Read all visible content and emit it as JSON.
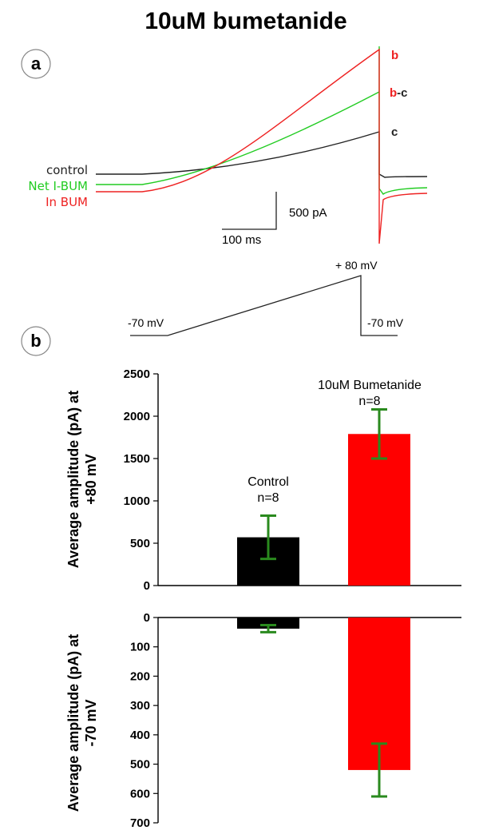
{
  "title": "10uM bumetanide",
  "panel_a": {
    "label": "a",
    "legend": [
      {
        "name": "control",
        "color": "#222222"
      },
      {
        "name": "Net I-BUM",
        "color": "#22cc22"
      },
      {
        "name": "In BUM",
        "color": "#ee2222"
      }
    ],
    "trace_end_labels": {
      "b": "b",
      "b_c_b": "b",
      "b_c_c": "-c",
      "c": "c"
    },
    "scale_bar": {
      "current": "500 pA",
      "time": "100 ms"
    },
    "protocol": {
      "peak": "+ 80 mV",
      "hold_left": "-70 mV",
      "hold_right": "-70 mV"
    }
  },
  "panel_b": {
    "label": "b",
    "bar_annotations": [
      {
        "name": "Control",
        "n": "n=8"
      },
      {
        "name": "10uM Bumetanide",
        "n": "n=8"
      }
    ]
  },
  "colors": {
    "control": "#000000",
    "bumetanide": "#ff0000",
    "error_bar": "#2a8a1e",
    "net": "#22cc22"
  },
  "chart_data": [
    {
      "type": "bar",
      "ylabel": "Average amplitude (pA) at +80 mV",
      "categories": [
        "Control",
        "10uM Bumetanide"
      ],
      "values": [
        570,
        1790
      ],
      "errors": [
        255,
        290
      ],
      "colors": [
        "#000000",
        "#ff0000"
      ],
      "ylim": [
        0,
        2500
      ],
      "yticks": [
        "0",
        "500",
        "1000",
        "1500",
        "2000",
        "2500"
      ]
    },
    {
      "type": "bar",
      "ylabel": "Average amplitude (pA) at -70 mV",
      "categories": [
        "Control",
        "10uM Bumetanide"
      ],
      "values": [
        38,
        520
      ],
      "errors": [
        12,
        90
      ],
      "colors": [
        "#000000",
        "#ff0000"
      ],
      "ylim": [
        0,
        700
      ],
      "inverted": true,
      "yticks": [
        "0",
        "100",
        "200",
        "300",
        "400",
        "500",
        "600",
        "700"
      ]
    }
  ]
}
